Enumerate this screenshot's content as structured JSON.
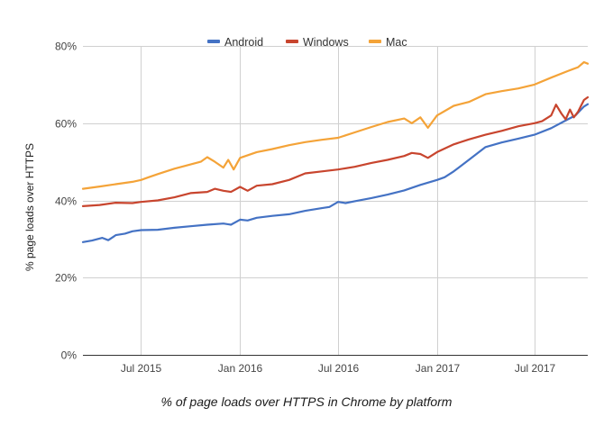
{
  "chart_data": {
    "type": "line",
    "title": "% of page loads over HTTPS in Chrome by platform",
    "xlabel": "",
    "ylabel": "% page loads over HTTPS",
    "ylim": [
      0,
      80
    ],
    "xlim": [
      "2015-03-15",
      "2017-10-08"
    ],
    "y_ticks": [
      0,
      20,
      40,
      60,
      80
    ],
    "y_tick_labels": [
      "0%",
      "20%",
      "40%",
      "60%",
      "80%"
    ],
    "x_ticks": [
      "2015-07-01",
      "2016-01-01",
      "2016-07-01",
      "2017-01-01",
      "2017-07-01"
    ],
    "x_tick_labels": [
      "Jul 2015",
      "Jan 2016",
      "Jul 2016",
      "Jan 2017",
      "Jul 2017"
    ],
    "grid": true,
    "legend_position": "top-center",
    "series": [
      {
        "name": "Android",
        "color": "#4472c4",
        "points": [
          [
            "2015-03-15",
            29.2
          ],
          [
            "2015-04-01",
            29.6
          ],
          [
            "2015-04-20",
            30.3
          ],
          [
            "2015-05-01",
            29.7
          ],
          [
            "2015-05-15",
            31.0
          ],
          [
            "2015-06-01",
            31.4
          ],
          [
            "2015-06-15",
            32.0
          ],
          [
            "2015-07-01",
            32.3
          ],
          [
            "2015-08-01",
            32.4
          ],
          [
            "2015-09-01",
            32.9
          ],
          [
            "2015-10-01",
            33.3
          ],
          [
            "2015-11-01",
            33.7
          ],
          [
            "2015-12-01",
            34.0
          ],
          [
            "2015-12-15",
            33.7
          ],
          [
            "2016-01-01",
            35.0
          ],
          [
            "2016-01-15",
            34.8
          ],
          [
            "2016-02-01",
            35.5
          ],
          [
            "2016-03-01",
            36.0
          ],
          [
            "2016-04-01",
            36.4
          ],
          [
            "2016-05-01",
            37.3
          ],
          [
            "2016-06-01",
            38.0
          ],
          [
            "2016-06-15",
            38.3
          ],
          [
            "2016-07-01",
            39.6
          ],
          [
            "2016-07-15",
            39.3
          ],
          [
            "2016-08-01",
            39.8
          ],
          [
            "2016-09-01",
            40.6
          ],
          [
            "2016-10-01",
            41.5
          ],
          [
            "2016-11-01",
            42.6
          ],
          [
            "2016-12-01",
            44.0
          ],
          [
            "2017-01-01",
            45.3
          ],
          [
            "2017-01-15",
            46.0
          ],
          [
            "2017-02-01",
            47.5
          ],
          [
            "2017-03-01",
            50.5
          ],
          [
            "2017-04-01",
            53.8
          ],
          [
            "2017-05-01",
            55.0
          ],
          [
            "2017-06-01",
            56.0
          ],
          [
            "2017-07-01",
            57.0
          ],
          [
            "2017-08-01",
            58.7
          ],
          [
            "2017-09-01",
            61.0
          ],
          [
            "2017-09-15",
            62.0
          ],
          [
            "2017-10-01",
            64.3
          ],
          [
            "2017-10-08",
            64.9
          ]
        ]
      },
      {
        "name": "Windows",
        "color": "#c8452e",
        "points": [
          [
            "2015-03-15",
            38.5
          ],
          [
            "2015-04-15",
            38.8
          ],
          [
            "2015-05-15",
            39.4
          ],
          [
            "2015-06-15",
            39.3
          ],
          [
            "2015-07-01",
            39.6
          ],
          [
            "2015-08-01",
            40.0
          ],
          [
            "2015-09-01",
            40.8
          ],
          [
            "2015-10-01",
            41.9
          ],
          [
            "2015-11-01",
            42.2
          ],
          [
            "2015-11-15",
            43.0
          ],
          [
            "2015-12-01",
            42.5
          ],
          [
            "2015-12-15",
            42.2
          ],
          [
            "2016-01-01",
            43.5
          ],
          [
            "2016-01-15",
            42.5
          ],
          [
            "2016-02-01",
            43.8
          ],
          [
            "2016-03-01",
            44.2
          ],
          [
            "2016-04-01",
            45.3
          ],
          [
            "2016-05-01",
            47.0
          ],
          [
            "2016-06-01",
            47.5
          ],
          [
            "2016-07-01",
            48.0
          ],
          [
            "2016-08-01",
            48.7
          ],
          [
            "2016-09-01",
            49.7
          ],
          [
            "2016-10-01",
            50.5
          ],
          [
            "2016-11-01",
            51.5
          ],
          [
            "2016-11-15",
            52.3
          ],
          [
            "2016-12-01",
            52.0
          ],
          [
            "2016-12-15",
            51.0
          ],
          [
            "2017-01-01",
            52.5
          ],
          [
            "2017-02-01",
            54.5
          ],
          [
            "2017-03-01",
            55.8
          ],
          [
            "2017-04-01",
            57.0
          ],
          [
            "2017-05-01",
            58.0
          ],
          [
            "2017-06-01",
            59.2
          ],
          [
            "2017-07-01",
            60.0
          ],
          [
            "2017-07-15",
            60.5
          ],
          [
            "2017-08-01",
            62.0
          ],
          [
            "2017-08-10",
            64.8
          ],
          [
            "2017-08-20",
            62.5
          ],
          [
            "2017-08-28",
            61.0
          ],
          [
            "2017-09-05",
            63.5
          ],
          [
            "2017-09-12",
            61.5
          ],
          [
            "2017-09-20",
            63.0
          ],
          [
            "2017-10-01",
            66.0
          ],
          [
            "2017-10-08",
            66.7
          ]
        ]
      },
      {
        "name": "Mac",
        "color": "#f4a338",
        "points": [
          [
            "2015-03-15",
            43.0
          ],
          [
            "2015-04-15",
            43.6
          ],
          [
            "2015-05-15",
            44.2
          ],
          [
            "2015-06-15",
            44.8
          ],
          [
            "2015-07-01",
            45.3
          ],
          [
            "2015-07-15",
            46.0
          ],
          [
            "2015-08-01",
            46.8
          ],
          [
            "2015-09-01",
            48.2
          ],
          [
            "2015-10-01",
            49.3
          ],
          [
            "2015-10-20",
            50.0
          ],
          [
            "2015-11-01",
            51.2
          ],
          [
            "2015-11-15",
            50.0
          ],
          [
            "2015-12-01",
            48.5
          ],
          [
            "2015-12-10",
            50.5
          ],
          [
            "2015-12-20",
            48.0
          ],
          [
            "2016-01-01",
            51.0
          ],
          [
            "2016-02-01",
            52.5
          ],
          [
            "2016-03-01",
            53.3
          ],
          [
            "2016-04-01",
            54.3
          ],
          [
            "2016-05-01",
            55.1
          ],
          [
            "2016-06-01",
            55.7
          ],
          [
            "2016-07-01",
            56.2
          ],
          [
            "2016-08-01",
            57.6
          ],
          [
            "2016-09-01",
            59.0
          ],
          [
            "2016-10-01",
            60.3
          ],
          [
            "2016-11-01",
            61.2
          ],
          [
            "2016-11-15",
            60.0
          ],
          [
            "2016-12-01",
            61.5
          ],
          [
            "2016-12-15",
            58.8
          ],
          [
            "2017-01-01",
            62.0
          ],
          [
            "2017-02-01",
            64.5
          ],
          [
            "2017-03-01",
            65.5
          ],
          [
            "2017-04-01",
            67.5
          ],
          [
            "2017-05-01",
            68.3
          ],
          [
            "2017-06-01",
            69.0
          ],
          [
            "2017-07-01",
            70.0
          ],
          [
            "2017-08-01",
            71.8
          ],
          [
            "2017-09-01",
            73.5
          ],
          [
            "2017-09-20",
            74.5
          ],
          [
            "2017-10-01",
            75.8
          ],
          [
            "2017-10-08",
            75.4
          ]
        ]
      }
    ]
  }
}
